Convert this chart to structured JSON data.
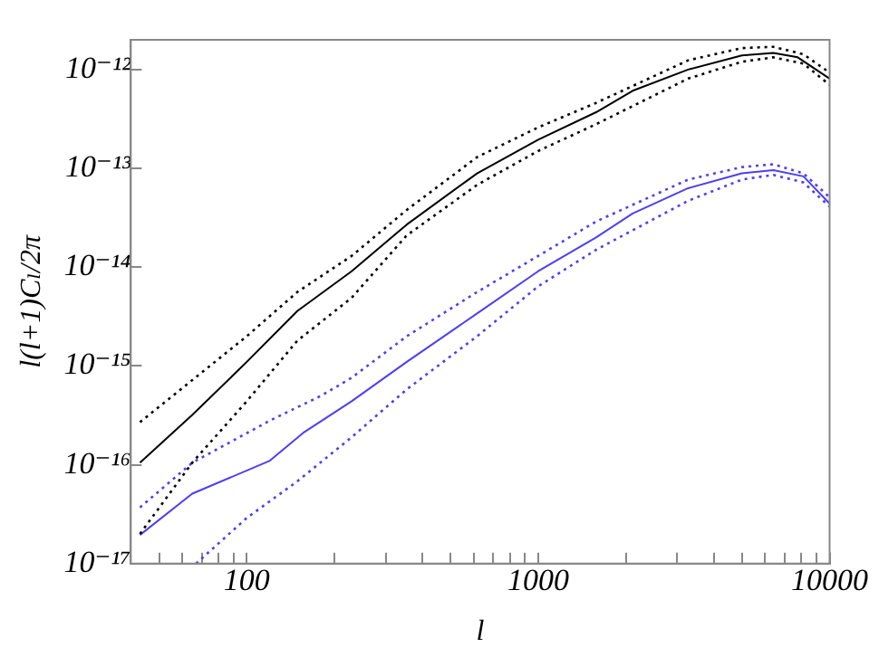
{
  "chart_data": {
    "type": "line",
    "xlabel": "l",
    "ylabel": "l(l+1)Cₗ/2π",
    "log": "xy",
    "grid": false,
    "legend": false,
    "marker": "none",
    "xlim": [
      40,
      10000
    ],
    "xticks": [
      {
        "value": 50,
        "label": null
      },
      {
        "value": 60,
        "label": null
      },
      {
        "value": 70,
        "label": null
      },
      {
        "value": 80,
        "label": null
      },
      {
        "value": 90,
        "label": null
      },
      100,
      {
        "value": 200,
        "label": null
      },
      {
        "value": 300,
        "label": null
      },
      {
        "value": 400,
        "label": null
      },
      {
        "value": 500,
        "label": null
      },
      {
        "value": 600,
        "label": null
      },
      {
        "value": 700,
        "label": null
      },
      {
        "value": 800,
        "label": null
      },
      {
        "value": 900,
        "label": null
      },
      1000,
      {
        "value": 2000,
        "label": null
      },
      {
        "value": 3000,
        "label": null
      },
      {
        "value": 4000,
        "label": null
      },
      {
        "value": 5000,
        "label": null
      },
      {
        "value": 6000,
        "label": null
      },
      {
        "value": 7000,
        "label": null
      },
      {
        "value": 8000,
        "label": null
      },
      {
        "value": 9000,
        "label": null
      },
      10000
    ],
    "ylim": [
      1e-17,
      2e-12
    ],
    "yticks": [
      {
        "value": 1e-17,
        "label": "10⁻¹⁷"
      },
      {
        "value": 1e-16,
        "label": "10⁻¹⁶"
      },
      {
        "value": 1e-15,
        "label": "10⁻¹⁵"
      },
      {
        "value": 1e-14,
        "label": "10⁻¹⁴"
      },
      {
        "value": 1e-13,
        "label": "10⁻¹³"
      },
      {
        "value": 1e-12,
        "label": "10⁻¹²"
      }
    ],
    "series": [
      {
        "color": "#000000",
        "line_style": "solid",
        "x": [
          43,
          65,
          100,
          149,
          229,
          354,
          617,
          1000,
          1580,
          2110,
          3270,
          5000,
          6410,
          7770,
          10000
        ],
        "values": [
          1.05e-16,
          3.2e-16,
          1.1e-15,
          3.6e-15,
          9.1e-15,
          2.7e-14,
          8.9e-14,
          1.95e-13,
          3.7e-13,
          6.1e-13,
          1e-12,
          1.39e-12,
          1.47e-12,
          1.33e-12,
          8.1e-13
        ]
      },
      {
        "color": "#000000",
        "line_style": "dotted",
        "x": [
          43,
          100,
          149,
          229,
          354,
          617,
          1000,
          1580,
          3270,
          5000,
          6410,
          8130,
          10000
        ],
        "values": [
          2.7e-16,
          2e-15,
          5.6e-15,
          1.3e-14,
          3.8e-14,
          1.3e-13,
          2.6e-13,
          4.6e-13,
          1.24e-12,
          1.65e-12,
          1.7e-12,
          1.43e-12,
          9.3e-13
        ]
      },
      {
        "color": "#000000",
        "line_style": "dotted",
        "x": [
          43,
          65,
          100,
          149,
          229,
          354,
          617,
          1000,
          1580,
          3270,
          5000,
          6410,
          8130,
          10000
        ],
        "values": [
          2e-17,
          1.05e-16,
          4.4e-16,
          1.8e-15,
          4.9e-15,
          2.1e-14,
          6.8e-14,
          1.5e-13,
          2.8e-13,
          8.1e-13,
          1.2e-12,
          1.33e-12,
          1.15e-12,
          7e-13
        ]
      },
      {
        "color": "#4c3ff2",
        "line_style": "solid",
        "x": [
          43,
          65,
          120,
          156,
          229,
          354,
          617,
          1000,
          1580,
          2110,
          3270,
          5000,
          6410,
          8130,
          10000
        ],
        "values": [
          1.95e-17,
          5.1e-17,
          1.1e-16,
          2.1e-16,
          4.4e-16,
          1.1e-15,
          3.4e-15,
          9.1e-15,
          2e-14,
          3.5e-14,
          6.3e-14,
          8.9e-14,
          9.6e-14,
          8.3e-14,
          4.4e-14
        ]
      },
      {
        "color": "#4c3ff2",
        "line_style": "dotted",
        "x": [
          43,
          65,
          120,
          180,
          229,
          354,
          617,
          1000,
          1580,
          3270,
          5000,
          6410,
          8130,
          10000
        ],
        "values": [
          3.7e-17,
          1.05e-16,
          2.8e-16,
          5e-16,
          7.6e-16,
          2e-15,
          5.6e-15,
          1.3e-14,
          2.9e-14,
          7.7e-14,
          1.03e-13,
          1.1e-13,
          8.9e-14,
          5.1e-14
        ]
      },
      {
        "color": "#4c3ff2",
        "line_style": "dotted",
        "x": [
          67,
          100,
          149,
          229,
          354,
          617,
          1000,
          1580,
          3270,
          5000,
          6410,
          8130,
          10000
        ],
        "values": [
          1e-17,
          2.9e-17,
          6.8e-17,
          1.9e-16,
          5.8e-16,
          2e-15,
          6.4e-15,
          1.5e-14,
          4.7e-14,
          7.7e-14,
          8.6e-14,
          7.2e-14,
          4.1e-14
        ]
      }
    ]
  }
}
